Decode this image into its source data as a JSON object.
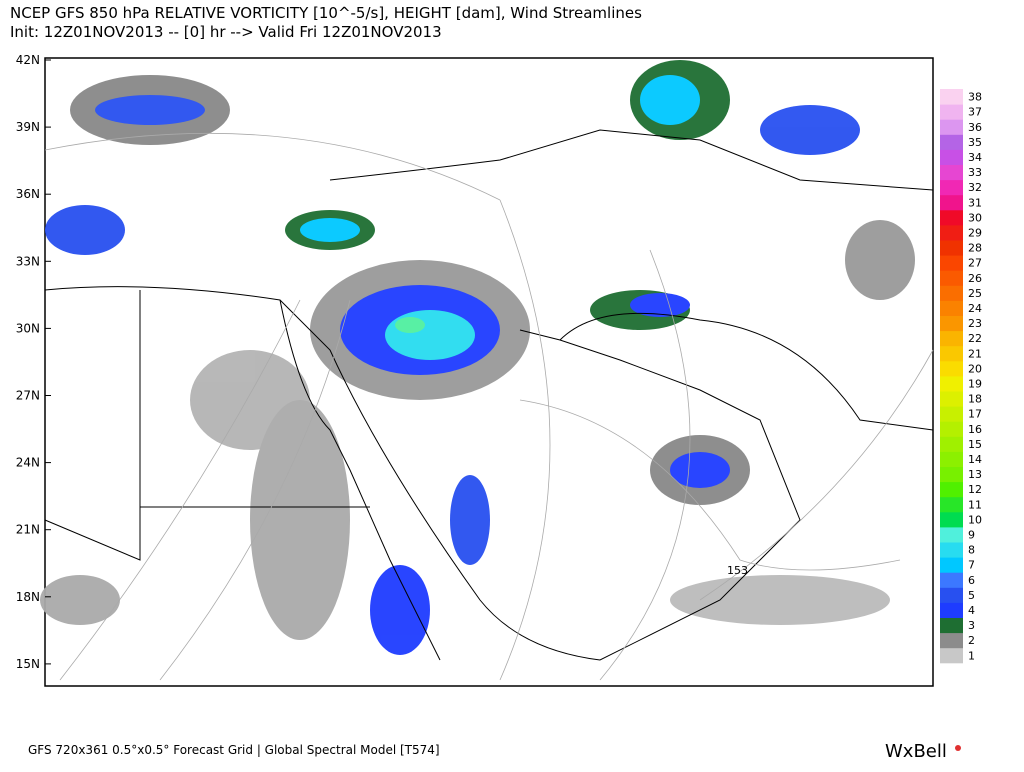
{
  "header": {
    "title": "NCEP GFS 850 hPa RELATIVE VORTICITY [10^-5/s], HEIGHT [dam], Wind Streamlines",
    "subtitle": "Init: 12Z01NOV2013 -- [0] hr --> Valid Fri 12Z01NOV2013"
  },
  "map": {
    "lat_labels": [
      "42N",
      "39N",
      "36N",
      "33N",
      "30N",
      "27N",
      "24N",
      "21N",
      "18N",
      "15N"
    ],
    "contour_label": "153"
  },
  "colorbar": {
    "levels": [
      1,
      2,
      3,
      4,
      5,
      6,
      7,
      8,
      9,
      10,
      11,
      12,
      13,
      14,
      15,
      16,
      17,
      18,
      19,
      20,
      21,
      22,
      23,
      24,
      25,
      26,
      27,
      28,
      29,
      30,
      31,
      32,
      33,
      34,
      35,
      36,
      37,
      38
    ],
    "colors": [
      "#c8c8c8",
      "#8c8c8c",
      "#1e6e32",
      "#1e3cff",
      "#2850f0",
      "#3c78ff",
      "#00c8ff",
      "#28dcf0",
      "#50f0dc",
      "#00dc50",
      "#28e628",
      "#50f000",
      "#78f000",
      "#8cf000",
      "#a0f000",
      "#b4f000",
      "#c8f000",
      "#dcf000",
      "#f0f000",
      "#fadc00",
      "#fac800",
      "#fab400",
      "#fa9600",
      "#fa8200",
      "#fa6e00",
      "#fa5a00",
      "#fa4600",
      "#f03200",
      "#f01e14",
      "#f00a28",
      "#f0148c",
      "#f028b4",
      "#e646d2",
      "#c850e6",
      "#b464e6",
      "#dc96f0",
      "#f0b4f0",
      "#fad2f0"
    ]
  },
  "footer": {
    "left": "GFS 720x361 0.5°x0.5° Forecast Grid | Global Spectral Model [T574]",
    "brand": "WxBell"
  }
}
